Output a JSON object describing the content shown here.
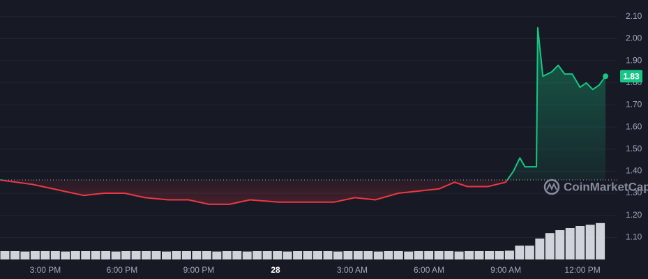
{
  "chart_data": {
    "type": "line",
    "x": [
      13.25,
      14.5,
      15.7,
      16.5,
      17.3,
      18.1,
      18.9,
      19.8,
      20.6,
      21.4,
      22.2,
      23.0,
      24.1,
      25.2,
      26.3,
      27.1,
      27.9,
      28.8,
      29.6,
      30.4,
      31.0,
      31.5,
      32.3,
      33.0,
      33.3,
      33.55,
      33.75,
      34.2,
      34.25,
      34.45,
      34.8,
      35.05,
      35.3,
      35.6,
      35.9,
      36.15,
      36.4,
      36.65,
      36.9
    ],
    "series": [
      {
        "name": "Price",
        "color_up": "#16c784",
        "color_down": "#ea3943",
        "values": [
          1.36,
          1.34,
          1.31,
          1.29,
          1.3,
          1.3,
          1.28,
          1.27,
          1.27,
          1.25,
          1.25,
          1.27,
          1.26,
          1.26,
          1.26,
          1.28,
          1.27,
          1.3,
          1.31,
          1.32,
          1.35,
          1.33,
          1.33,
          1.35,
          1.4,
          1.46,
          1.42,
          1.42,
          2.05,
          1.83,
          1.85,
          1.88,
          1.84,
          1.84,
          1.78,
          1.8,
          1.77,
          1.79,
          1.83
        ]
      }
    ],
    "baseline": 1.36,
    "volume": {
      "color": "#e6e8ee",
      "vlim": [
        0,
        100
      ],
      "values": [
        20,
        20,
        19,
        20,
        20,
        20,
        19,
        20,
        20,
        20,
        20,
        19,
        20,
        20,
        20,
        20,
        19,
        20,
        20,
        20,
        20,
        19,
        20,
        20,
        19,
        20,
        20,
        20,
        19,
        20,
        20,
        20,
        20,
        19,
        20,
        20,
        20,
        19,
        20,
        20,
        19,
        20,
        20,
        20,
        20,
        19,
        20,
        20,
        20,
        20,
        21,
        33,
        33,
        50,
        63,
        70,
        75,
        80,
        83,
        87
      ]
    },
    "xlim": [
      13.23,
      37.36
    ],
    "xticks": [
      {
        "value": 15,
        "label": "3:00 PM"
      },
      {
        "value": 18,
        "label": "6:00 PM"
      },
      {
        "value": 21,
        "label": "9:00 PM"
      },
      {
        "value": 24,
        "label": "28"
      },
      {
        "value": 27,
        "label": "3:00 AM"
      },
      {
        "value": 30,
        "label": "6:00 AM"
      },
      {
        "value": 33,
        "label": "9:00 AM"
      },
      {
        "value": 36,
        "label": "12:00 PM"
      }
    ],
    "ylim": [
      1.0,
      2.15
    ],
    "yticks": [
      {
        "value": 1.1,
        "label": "1.10"
      },
      {
        "value": 1.2,
        "label": "1.20"
      },
      {
        "value": 1.3,
        "label": "1.30"
      },
      {
        "value": 1.4,
        "label": "1.40"
      },
      {
        "value": 1.5,
        "label": "1.50"
      },
      {
        "value": 1.6,
        "label": "1.60"
      },
      {
        "value": 1.7,
        "label": "1.70"
      },
      {
        "value": 1.8,
        "label": "1.80"
      },
      {
        "value": 1.9,
        "label": "1.90"
      },
      {
        "value": 2.0,
        "label": "2.00"
      },
      {
        "value": 2.1,
        "label": "2.10"
      }
    ],
    "grid": true,
    "watermark": "CoinMarketCap"
  }
}
